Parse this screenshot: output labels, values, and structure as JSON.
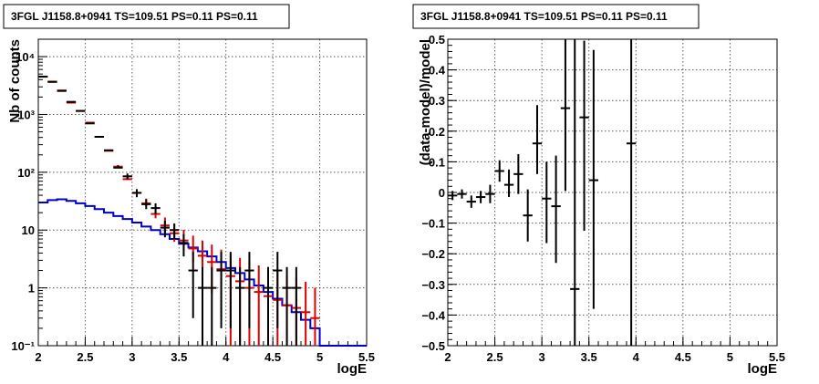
{
  "chart_data": [
    {
      "type": "histogram",
      "title": "3FGL J1158.8+0941 TS=109.51 PS=0.11 PS=0.11",
      "xlabel": "logE",
      "ylabel": "Nb of counts",
      "xlim": [
        2,
        5.5
      ],
      "ylim": [
        0.1,
        20000
      ],
      "yscale": "log",
      "grid": true,
      "x_ticks": [
        "2",
        "2.5",
        "3",
        "3.5",
        "4",
        "4.5",
        "5",
        "5.5"
      ],
      "y_ticks": [
        "10⁻¹",
        "1",
        "10",
        "10²",
        "10³",
        "10⁴"
      ],
      "series": [
        {
          "kind": "step",
          "color": "#0000cc",
          "x_edges": [
            2.0,
            2.1,
            2.2,
            2.3,
            2.4,
            2.5,
            2.6,
            2.7,
            2.8,
            2.9,
            3.0,
            3.1,
            3.2,
            3.3,
            3.4,
            3.5,
            3.6,
            3.7,
            3.8,
            3.9,
            4.0,
            4.1,
            4.2,
            4.3,
            4.4,
            4.5,
            4.6,
            4.7,
            4.8,
            4.9,
            5.0,
            5.1,
            5.2,
            5.3,
            5.4,
            5.5
          ],
          "values": [
            30,
            33,
            34,
            32,
            29,
            26,
            23,
            20,
            17.5,
            15.5,
            13.5,
            11.5,
            10,
            8.5,
            7,
            5.8,
            5,
            4.3,
            3.5,
            2.8,
            2.2,
            1.8,
            1.4,
            1.1,
            0.85,
            0.65,
            0.5,
            0.38,
            0.28,
            0.2,
            0.1,
            0.1,
            0.1,
            0.1,
            0.1
          ]
        },
        {
          "kind": "errorbar",
          "color": "#dd0000",
          "x": [
            2.05,
            2.15,
            2.25,
            2.35,
            2.45,
            2.55,
            2.65,
            2.75,
            2.85,
            2.95,
            3.05,
            3.15,
            3.25,
            3.35,
            3.45,
            3.55,
            3.65,
            3.75,
            3.85,
            3.95,
            4.05,
            4.15,
            4.25,
            4.35,
            4.45,
            4.55,
            4.65,
            4.75,
            4.85,
            4.95
          ],
          "y": [
            4500,
            3700,
            2600,
            1600,
            1150,
            720,
            410,
            235,
            125,
            76,
            44,
            29,
            19,
            12,
            8.8,
            6.6,
            4.8,
            3.6,
            2.8,
            2.1,
            1.6,
            1.3,
            1.0,
            0.85,
            0.72,
            0.62,
            0.5,
            0.45,
            0.38,
            0.3
          ],
          "yerr_low": [
            0,
            0,
            0,
            0,
            0,
            0,
            0,
            0,
            0,
            0,
            0,
            3,
            3,
            3,
            2.5,
            2.2,
            2,
            2,
            2,
            1.8,
            1.5,
            1.25,
            0.98,
            0.84,
            0.71,
            0.61,
            0.49,
            0.44,
            0.37,
            0.29
          ],
          "yerr_high": [
            0,
            0,
            0,
            0,
            0,
            0,
            0,
            0,
            8,
            8,
            7,
            6,
            5,
            4.5,
            4,
            3.5,
            3.2,
            3,
            2.8,
            2.5,
            2.2,
            2,
            1.8,
            1.6,
            1.4,
            1.3,
            1.1,
            1.0,
            0.9,
            0.7
          ]
        },
        {
          "kind": "errorbar",
          "color": "#000000",
          "x": [
            2.05,
            2.15,
            2.25,
            2.35,
            2.45,
            2.55,
            2.65,
            2.75,
            2.85,
            2.95,
            3.05,
            3.15,
            3.25,
            3.35,
            3.45,
            3.55,
            3.65,
            3.75,
            3.85,
            3.95,
            4.05,
            4.15,
            4.25,
            4.45,
            4.55,
            4.65,
            4.75
          ],
          "y": [
            4500,
            3650,
            2550,
            1650,
            1150,
            700,
            410,
            240,
            120,
            85,
            44,
            28,
            24,
            11,
            10,
            6,
            2,
            1,
            1,
            2,
            2,
            1,
            2,
            1,
            2,
            1,
            1
          ],
          "yerr_low": [
            0,
            0,
            0,
            0,
            0,
            0,
            0,
            0,
            0,
            10,
            7,
            5,
            5,
            3.5,
            3,
            2.5,
            1.7,
            0.99,
            0.99,
            1.8,
            1.8,
            0.99,
            1.8,
            0.99,
            1.8,
            0.99,
            0.99
          ],
          "yerr_high": [
            0,
            0,
            0,
            0,
            0,
            0,
            0,
            0,
            11,
            10,
            7,
            6,
            5,
            3.5,
            3,
            2.5,
            2.2,
            1.3,
            1.3,
            2.2,
            2.2,
            1.3,
            2.2,
            1.3,
            2.2,
            1.3,
            1.3
          ]
        }
      ]
    },
    {
      "type": "errorbar",
      "title": "3FGL J1158.8+0941 TS=109.51 PS=0.11 PS=0.11",
      "xlabel": "logE",
      "ylabel": "(data-model)/model",
      "xlim": [
        2,
        5.5
      ],
      "ylim": [
        -0.5,
        0.5
      ],
      "grid": true,
      "x_ticks": [
        "2",
        "2.5",
        "3",
        "3.5",
        "4",
        "4.5",
        "5",
        "5.5"
      ],
      "y_ticks": [
        "−0.5",
        "−0.4",
        "−0.3",
        "−0.2",
        "−0.1",
        "0",
        "0.1",
        "0.2",
        "0.3",
        "0.4",
        "0.5"
      ],
      "y_tick_values": [
        -0.5,
        -0.4,
        -0.3,
        -0.2,
        -0.1,
        0,
        0.1,
        0.2,
        0.3,
        0.4,
        0.5
      ],
      "series": [
        {
          "kind": "errorbar",
          "color": "#000000",
          "x": [
            2.05,
            2.15,
            2.25,
            2.35,
            2.45,
            2.55,
            2.65,
            2.75,
            2.85,
            2.95,
            3.05,
            3.15,
            3.25,
            3.35,
            3.45,
            3.55,
            3.95
          ],
          "y": [
            -0.01,
            -0.005,
            -0.03,
            -0.015,
            -0.005,
            0.07,
            0.025,
            0.06,
            -0.075,
            0.16,
            -0.02,
            -0.045,
            0.275,
            -0.315,
            0.245,
            0.04,
            0.16
          ],
          "yerr_low": [
            0.015,
            0.015,
            0.02,
            0.02,
            0.03,
            0.035,
            0.04,
            0.065,
            0.085,
            0.1,
            0.145,
            0.185,
            0.27,
            0.185,
            0.37,
            0.42,
            0.66
          ],
          "yerr_high": [
            0.015,
            0.015,
            0.02,
            0.02,
            0.03,
            0.035,
            0.05,
            0.065,
            0.085,
            0.125,
            0.12,
            0.165,
            0.225,
            0.82,
            0.25,
            0.425,
            0.34
          ]
        }
      ]
    }
  ]
}
